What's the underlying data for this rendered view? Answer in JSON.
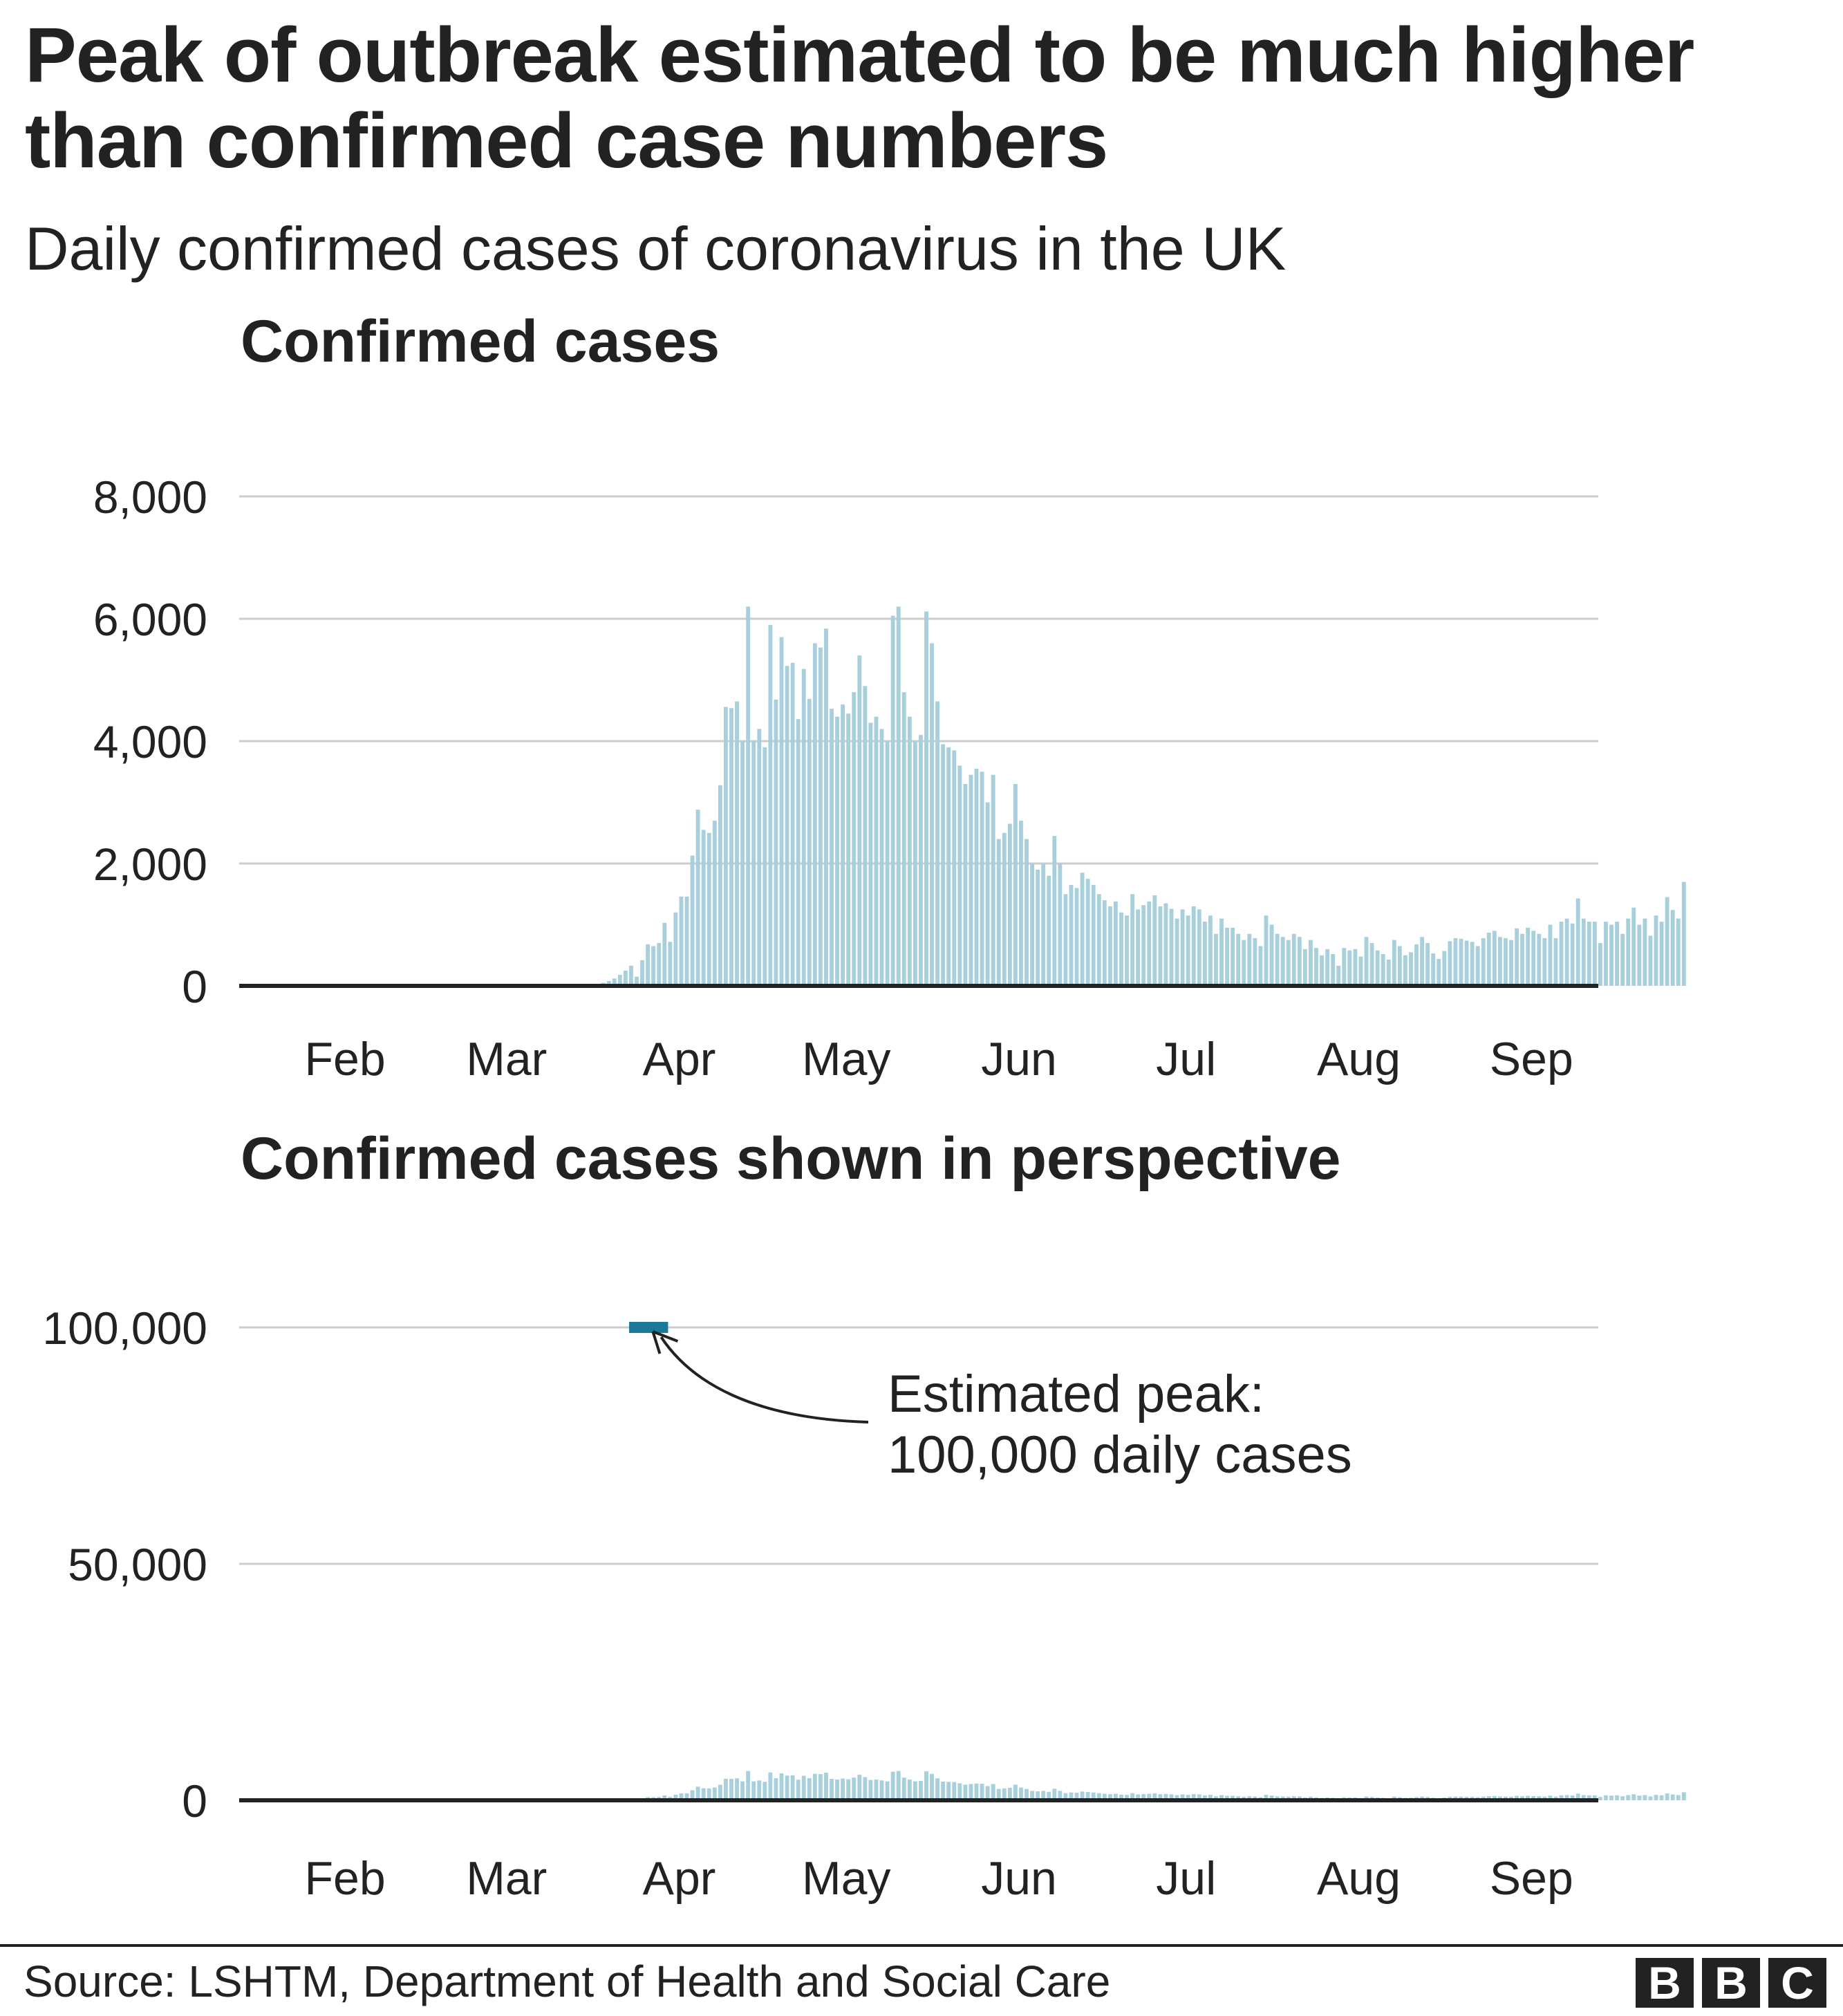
{
  "headline": "Peak of outbreak estimated to be much higher than confirmed case numbers",
  "subtitle": "Daily confirmed cases of coronavirus in the UK",
  "colors": {
    "bar": "#a8d0dc",
    "peak_marker": "#1b7a99",
    "grid": "#cccccc",
    "axis": "#222222",
    "text": "#222222"
  },
  "chart_data": [
    {
      "type": "bar",
      "title": "Confirmed cases",
      "ylim": [
        0,
        8000
      ],
      "y_ticks": [
        0,
        2000,
        4000,
        6000,
        8000
      ],
      "y_tick_labels": [
        "0",
        "2,000",
        "4,000",
        "6,000",
        "8,000"
      ],
      "x_ticks": [
        "Feb",
        "Mar",
        "Apr",
        "May",
        "Jun",
        "Jul",
        "Aug",
        "Sep"
      ],
      "x_range_days": [
        0,
        244
      ],
      "x_tick_days": [
        19,
        48,
        79,
        109,
        140,
        170,
        201,
        232
      ],
      "series": [
        {
          "name": "Daily confirmed cases",
          "start_day": 63,
          "values": [
            20,
            30,
            50,
            80,
            120,
            180,
            250,
            330,
            150,
            420,
            680,
            650,
            700,
            1030,
            720,
            1200,
            1460,
            1460,
            2130,
            2880,
            2550,
            2500,
            2700,
            3280,
            4560,
            4540,
            4650,
            4000,
            6200,
            4000,
            4200,
            3900,
            5900,
            4680,
            5700,
            5230,
            5280,
            4360,
            5180,
            4690,
            5600,
            5530,
            5840,
            4530,
            4400,
            4600,
            4450,
            4800,
            5400,
            4900,
            4300,
            4400,
            4200,
            4000,
            6050,
            6200,
            4800,
            4400,
            4000,
            4100,
            6120,
            5600,
            4650,
            3950,
            3900,
            3850,
            3600,
            3300,
            3450,
            3550,
            3500,
            3000,
            3450,
            2400,
            2500,
            2650,
            3300,
            2700,
            2400,
            2000,
            1900,
            2000,
            1800,
            2450,
            2000,
            1500,
            1650,
            1600,
            1850,
            1750,
            1650,
            1500,
            1400,
            1300,
            1380,
            1200,
            1150,
            1500,
            1250,
            1320,
            1380,
            1480,
            1300,
            1350,
            1260,
            1100,
            1250,
            1150,
            1300,
            1250,
            1050,
            1150,
            850,
            1100,
            950,
            950,
            850,
            750,
            850,
            780,
            650,
            1150,
            1000,
            850,
            800,
            750,
            850,
            800,
            600,
            750,
            620,
            500,
            600,
            520,
            330,
            620,
            580,
            600,
            480,
            800,
            700,
            580,
            520,
            430,
            750,
            650,
            500,
            550,
            680,
            800,
            700,
            530,
            440,
            570,
            730,
            780,
            770,
            740,
            720,
            650,
            780,
            870,
            900,
            800,
            780,
            750,
            940,
            850,
            950,
            900,
            850,
            780,
            1000,
            780,
            1050,
            1100,
            1020,
            1430,
            1100,
            1050,
            1050,
            700,
            1050,
            1000,
            1050,
            850,
            1100,
            1280,
            1000,
            1100,
            820,
            1150,
            1050,
            1450,
            1240,
            1100,
            1700
          ]
        }
      ]
    },
    {
      "type": "bar",
      "title": "Confirmed cases shown in perspective",
      "ylim": [
        0,
        100000
      ],
      "y_ticks": [
        0,
        50000,
        100000
      ],
      "y_tick_labels": [
        "0",
        "50,000",
        "100,000"
      ],
      "x_ticks": [
        "Feb",
        "Mar",
        "Apr",
        "May",
        "Jun",
        "Jul",
        "Aug",
        "Sep"
      ],
      "x_range_days": [
        0,
        244
      ],
      "x_tick_days": [
        19,
        48,
        79,
        109,
        140,
        170,
        201,
        232
      ],
      "uses_series_from_chart": 0,
      "estimated_peak": {
        "value": 100000,
        "start_day": 70,
        "end_day": 77
      },
      "annotation": {
        "line1": "Estimated peak:",
        "line2": "100,000 daily cases"
      }
    }
  ],
  "footer": {
    "source": "Source: LSHTM, Department of Health and Social Care",
    "logo_letters": [
      "B",
      "B",
      "C"
    ]
  }
}
